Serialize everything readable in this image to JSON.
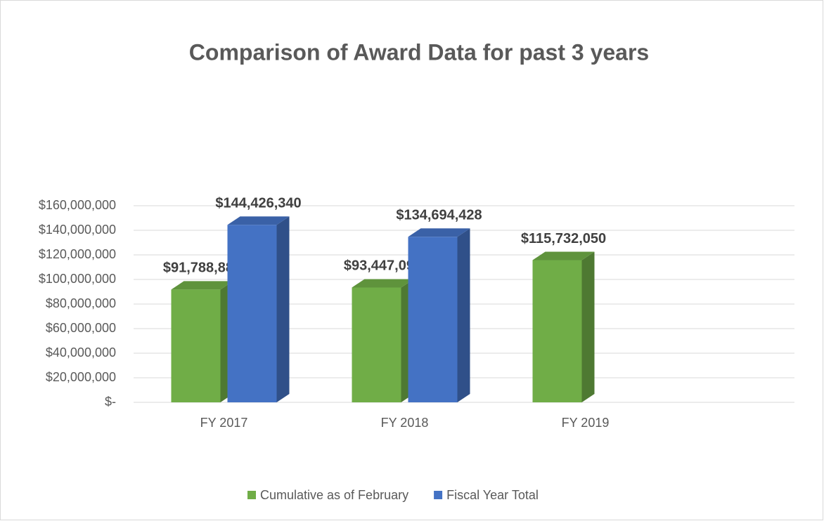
{
  "chart_data": {
    "type": "bar",
    "title": "Comparison of Award Data for past 3 years",
    "categories": [
      "FY 2017",
      "FY 2018",
      "FY 2019"
    ],
    "series": [
      {
        "name": "Cumulative as of February",
        "color": "#70ad47",
        "values": [
          91788888,
          93447095,
          115732050
        ],
        "value_labels": [
          "$91,788,888",
          "$93,447,095",
          "$115,732,050"
        ]
      },
      {
        "name": "Fiscal Year Total",
        "color": "#4472c4",
        "values": [
          144426340,
          134694428,
          null
        ],
        "value_labels": [
          "$144,426,340",
          "$134,694,428",
          null
        ]
      }
    ],
    "ylim": [
      0,
      160000000
    ],
    "yticks": [
      {
        "value": 0,
        "label": "$-"
      },
      {
        "value": 20000000,
        "label": "$20,000,000"
      },
      {
        "value": 40000000,
        "label": "$40,000,000"
      },
      {
        "value": 60000000,
        "label": "$60,000,000"
      },
      {
        "value": 80000000,
        "label": "$80,000,000"
      },
      {
        "value": 100000000,
        "label": "$100,000,000"
      },
      {
        "value": 120000000,
        "label": "$120,000,000"
      },
      {
        "value": 140000000,
        "label": "$140,000,000"
      },
      {
        "value": 160000000,
        "label": "$160,000,000"
      }
    ],
    "grid": true,
    "legend": "bottom"
  }
}
